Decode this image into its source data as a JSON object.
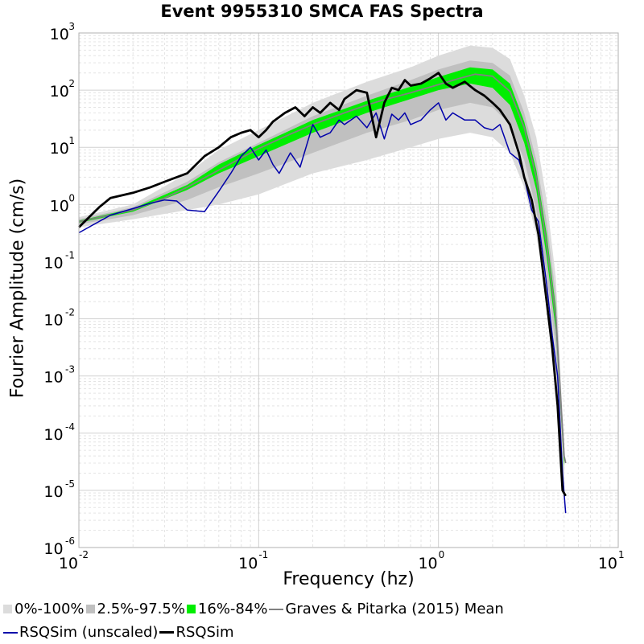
{
  "chart_data": {
    "type": "line",
    "title": "Event 9955310 SMCA FAS Spectra",
    "xlabel": "Frequency (hz)",
    "ylabel": "Fourier Amplitude (cm/s)",
    "x_scale": "log",
    "y_scale": "log",
    "xlim": [
      0.01,
      10
    ],
    "ylim": [
      1e-06,
      1000
    ],
    "x_ticks": [
      {
        "base": "10",
        "exp": "-2"
      },
      {
        "base": "10",
        "exp": "-1"
      },
      {
        "base": "10",
        "exp": "0"
      },
      {
        "base": "10",
        "exp": "1"
      }
    ],
    "y_ticks": [
      {
        "base": "10",
        "exp": "-6"
      },
      {
        "base": "10",
        "exp": "-5"
      },
      {
        "base": "10",
        "exp": "-4"
      },
      {
        "base": "10",
        "exp": "-3"
      },
      {
        "base": "10",
        "exp": "-2"
      },
      {
        "base": "10",
        "exp": "-1"
      },
      {
        "base": "10",
        "exp": "0"
      },
      {
        "base": "10",
        "exp": "1"
      },
      {
        "base": "10",
        "exp": "2"
      },
      {
        "base": "10",
        "exp": "3"
      }
    ],
    "grid": true,
    "legend_position": "bottom",
    "bands": [
      {
        "name": "0%-100%",
        "color": "#dcdcdc",
        "x": [
          0.01,
          0.02,
          0.04,
          0.06,
          0.1,
          0.2,
          0.4,
          0.7,
          1.0,
          1.5,
          2.0,
          2.5,
          3.0,
          3.5,
          4.0,
          4.5,
          5.0
        ],
        "lower": [
          0.4,
          0.55,
          0.8,
          1.0,
          1.5,
          3.5,
          6,
          10,
          14,
          18,
          15,
          8,
          2,
          0.3,
          0.02,
          0.001,
          1e-05
        ],
        "upper": [
          0.6,
          1.0,
          3.5,
          9,
          20,
          60,
          140,
          250,
          400,
          600,
          550,
          350,
          80,
          15,
          1.2,
          0.05,
          5e-05
        ]
      },
      {
        "name": "2.5%-97.5%",
        "color": "#c0c0c0",
        "x": [
          0.01,
          0.02,
          0.04,
          0.06,
          0.1,
          0.2,
          0.4,
          0.7,
          1.0,
          1.5,
          2.0,
          2.5,
          3.0,
          3.5,
          4.0,
          4.5,
          5.0
        ],
        "lower": [
          0.45,
          0.65,
          1.2,
          2.0,
          3.5,
          8,
          18,
          30,
          45,
          60,
          50,
          25,
          6,
          0.8,
          0.06,
          0.003,
          2e-05
        ],
        "upper": [
          0.55,
          0.9,
          2.5,
          5.5,
          12,
          35,
          80,
          150,
          230,
          330,
          300,
          180,
          40,
          6,
          0.5,
          0.025,
          4e-05
        ]
      },
      {
        "name": "16%-84%",
        "color": "#00ee00",
        "x": [
          0.01,
          0.02,
          0.04,
          0.06,
          0.1,
          0.2,
          0.4,
          0.7,
          1.0,
          1.5,
          2.0,
          2.5,
          3.0,
          3.5,
          4.0,
          4.5,
          5.0
        ],
        "lower": [
          0.48,
          0.75,
          1.8,
          3.5,
          7,
          18,
          40,
          70,
          100,
          130,
          110,
          55,
          12,
          1.8,
          0.12,
          0.006,
          2.5e-05
        ],
        "upper": [
          0.52,
          0.85,
          2.2,
          5.0,
          11,
          30,
          65,
          115,
          170,
          250,
          230,
          130,
          28,
          4,
          0.3,
          0.015,
          3.5e-05
        ]
      }
    ],
    "series": [
      {
        "name": "Graves & Pitarka (2015) Mean",
        "color": "#808080",
        "width": 1.8,
        "x": [
          0.01,
          0.02,
          0.03,
          0.04,
          0.06,
          0.08,
          0.1,
          0.15,
          0.2,
          0.3,
          0.4,
          0.5,
          0.7,
          1.0,
          1.3,
          1.6,
          2.0,
          2.5,
          3.0,
          3.5,
          4.0,
          4.5,
          5.0,
          5.1
        ],
        "y": [
          0.5,
          0.8,
          1.3,
          2.0,
          4.0,
          6.5,
          9.5,
          17,
          25,
          40,
          55,
          68,
          90,
          125,
          160,
          190,
          175,
          95,
          22,
          3.0,
          0.2,
          0.01,
          4e-05,
          3e-05
        ]
      },
      {
        "name": "RSQSim (unscaled)",
        "color": "#0000aa",
        "width": 1.5,
        "x": [
          0.01,
          0.015,
          0.02,
          0.025,
          0.03,
          0.035,
          0.04,
          0.05,
          0.06,
          0.07,
          0.08,
          0.09,
          0.1,
          0.11,
          0.12,
          0.13,
          0.15,
          0.17,
          0.2,
          0.22,
          0.25,
          0.28,
          0.3,
          0.35,
          0.4,
          0.45,
          0.5,
          0.55,
          0.6,
          0.65,
          0.7,
          0.8,
          0.9,
          1.0,
          1.1,
          1.2,
          1.4,
          1.6,
          1.8,
          2.0,
          2.2,
          2.5,
          2.8,
          3.0,
          3.3,
          3.6,
          4.0,
          4.3,
          4.6,
          4.9,
          5.1
        ],
        "y": [
          0.32,
          0.65,
          0.85,
          1.05,
          1.2,
          1.15,
          0.8,
          0.75,
          1.7,
          3.5,
          7,
          10,
          6,
          9,
          5,
          3.5,
          8,
          4.5,
          25,
          15,
          18,
          30,
          25,
          35,
          22,
          40,
          14,
          38,
          30,
          40,
          25,
          30,
          45,
          60,
          30,
          40,
          30,
          30,
          22,
          20,
          25,
          8,
          6,
          3,
          0.8,
          0.5,
          0.04,
          0.005,
          0.001,
          2e-05,
          4e-06
        ]
      },
      {
        "name": "RSQSim",
        "color": "#000000",
        "width": 2.8,
        "x": [
          0.01,
          0.013,
          0.015,
          0.02,
          0.025,
          0.03,
          0.035,
          0.04,
          0.05,
          0.06,
          0.07,
          0.08,
          0.09,
          0.1,
          0.11,
          0.12,
          0.14,
          0.16,
          0.18,
          0.2,
          0.22,
          0.25,
          0.28,
          0.3,
          0.35,
          0.4,
          0.45,
          0.5,
          0.55,
          0.6,
          0.65,
          0.7,
          0.8,
          0.9,
          1.0,
          1.1,
          1.2,
          1.4,
          1.6,
          1.8,
          2.0,
          2.2,
          2.5,
          2.8,
          3.0,
          3.3,
          3.6,
          4.0,
          4.3,
          4.6,
          4.9,
          5.1
        ],
        "y": [
          0.4,
          0.9,
          1.3,
          1.6,
          2.0,
          2.5,
          3.0,
          3.5,
          7,
          10,
          15,
          18,
          20,
          15,
          20,
          28,
          40,
          50,
          35,
          50,
          40,
          60,
          45,
          70,
          100,
          90,
          15,
          60,
          110,
          100,
          150,
          120,
          130,
          160,
          200,
          130,
          110,
          140,
          100,
          80,
          60,
          45,
          25,
          8,
          3,
          1.2,
          0.3,
          0.02,
          0.003,
          0.0003,
          1e-05,
          8e-06
        ]
      }
    ]
  }
}
